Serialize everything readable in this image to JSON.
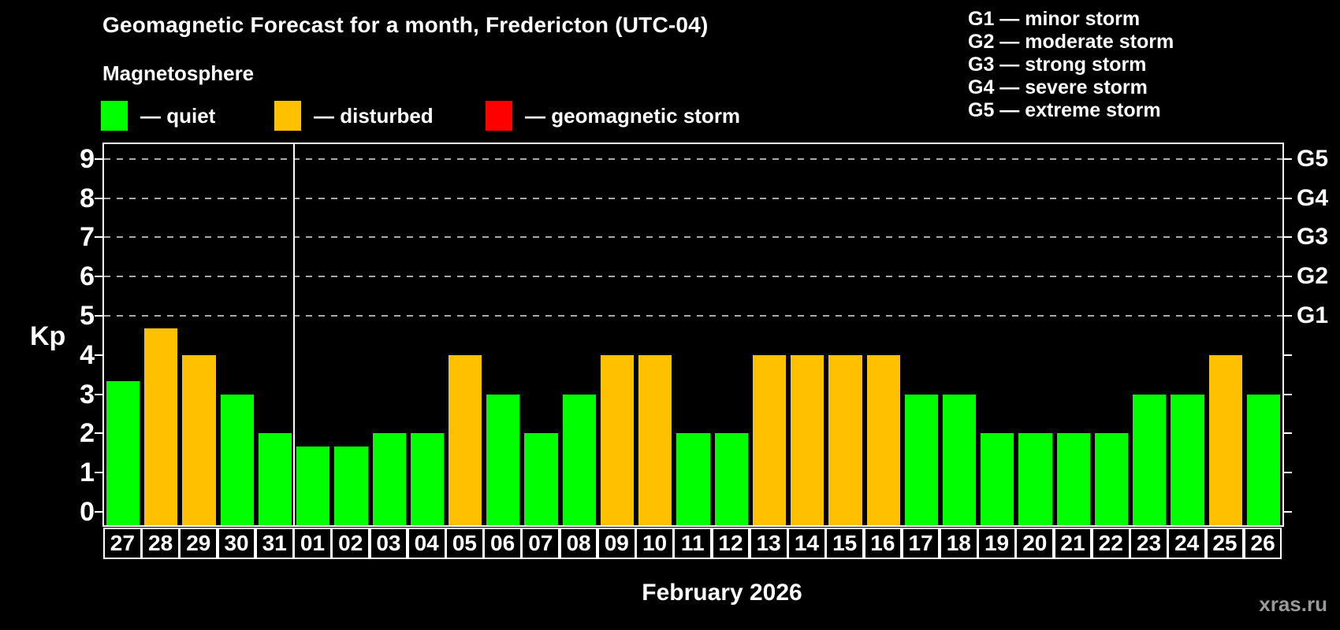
{
  "title": "Geomagnetic Forecast for a month, Fredericton (UTC-04)",
  "subtitle": "Magnetosphere",
  "bar_legend": [
    {
      "status": "quiet",
      "label": "— quiet",
      "color": "#00ff00"
    },
    {
      "status": "disturbed",
      "label": "— disturbed",
      "color": "#ffc000"
    },
    {
      "status": "storm",
      "label": "— geomagnetic storm",
      "color": "#ff0000"
    }
  ],
  "storm_scale_legend": [
    "G1 — minor storm",
    "G2 — moderate storm",
    "G3 — strong storm",
    "G4 — severe storm",
    "G5 — extreme storm"
  ],
  "axes": {
    "y_label": "Kp",
    "y_ticks": [
      0,
      1,
      2,
      3,
      4,
      5,
      6,
      7,
      8,
      9
    ],
    "x_label": "February 2026",
    "right_labels": [
      {
        "kp": 5,
        "label": "G1"
      },
      {
        "kp": 6,
        "label": "G2"
      },
      {
        "kp": 7,
        "label": "G3"
      },
      {
        "kp": 8,
        "label": "G4"
      },
      {
        "kp": 9,
        "label": "G5"
      }
    ]
  },
  "watermark": "xras.ru",
  "chart_data": {
    "type": "bar",
    "title": "Geomagnetic Forecast for a month, Fredericton (UTC-04)",
    "xlabel": "February 2026",
    "ylabel": "Kp",
    "ylim": [
      -0.34,
      9.4
    ],
    "gridlines": [
      5,
      6,
      7,
      8,
      9
    ],
    "legend_position": "top",
    "categories": [
      "27",
      "28",
      "29",
      "30",
      "31",
      "01",
      "02",
      "03",
      "04",
      "05",
      "06",
      "07",
      "08",
      "09",
      "10",
      "11",
      "12",
      "13",
      "14",
      "15",
      "16",
      "17",
      "18",
      "19",
      "20",
      "21",
      "22",
      "23",
      "24",
      "25",
      "26"
    ],
    "values": [
      3.33,
      4.67,
      4,
      3,
      2,
      1.67,
      1.67,
      2,
      2,
      4,
      3,
      2,
      3,
      4,
      4,
      2,
      2,
      4,
      4,
      4,
      4,
      3,
      3,
      2,
      2,
      2,
      2,
      3,
      3,
      4,
      3
    ],
    "statuses": [
      "quiet",
      "disturbed",
      "disturbed",
      "quiet",
      "quiet",
      "quiet",
      "quiet",
      "quiet",
      "quiet",
      "disturbed",
      "quiet",
      "quiet",
      "quiet",
      "disturbed",
      "disturbed",
      "quiet",
      "quiet",
      "disturbed",
      "disturbed",
      "disturbed",
      "disturbed",
      "quiet",
      "quiet",
      "quiet",
      "quiet",
      "quiet",
      "quiet",
      "quiet",
      "quiet",
      "disturbed",
      "quiet"
    ],
    "month_separator_after_category": "31"
  },
  "colors": {
    "background": "#000000",
    "quiet": "#00ff00",
    "disturbed": "#ffc000",
    "storm": "#ff0000",
    "text": "#ffffff",
    "gridline": "#aaaaaa",
    "watermark": "#999999"
  }
}
